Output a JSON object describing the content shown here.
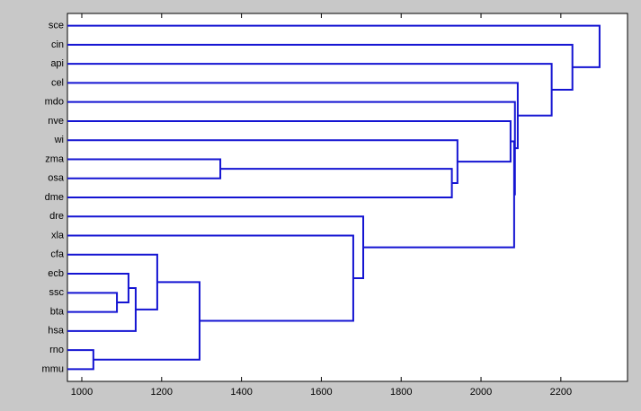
{
  "chart_data": {
    "type": "dendrogram",
    "orientation": "right",
    "color": "#1414d2",
    "leaves": [
      "sce",
      "cin",
      "api",
      "cel",
      "mdo",
      "nve",
      "wi",
      "zma",
      "osa",
      "dme",
      "dre",
      "xla",
      "cfa",
      "ecb",
      "ssc",
      "bta",
      "hsa",
      "rno",
      "mmu"
    ],
    "links": [
      {
        "left": 17,
        "right": 18,
        "height": 1029
      },
      {
        "left": 14,
        "right": 15,
        "height": 1088
      },
      {
        "left": 13,
        "right": 20,
        "height": 1117
      },
      {
        "left": 21,
        "right": 16,
        "height": 1135
      },
      {
        "left": 12,
        "right": 22,
        "height": 1189
      },
      {
        "left": 23,
        "right": 19,
        "height": 1295
      },
      {
        "left": 7,
        "right": 8,
        "height": 1347
      },
      {
        "left": 11,
        "right": 24,
        "height": 1680
      },
      {
        "left": 10,
        "right": 26,
        "height": 1705
      },
      {
        "left": 25,
        "right": 9,
        "height": 1927
      },
      {
        "left": 6,
        "right": 28,
        "height": 1941
      },
      {
        "left": 5,
        "right": 29,
        "height": 2074
      },
      {
        "left": 30,
        "right": 27,
        "height": 2083
      },
      {
        "left": 4,
        "right": 31,
        "height": 2085
      },
      {
        "left": 3,
        "right": 32,
        "height": 2092
      },
      {
        "left": 2,
        "right": 33,
        "height": 2177
      },
      {
        "left": 1,
        "right": 34,
        "height": 2229
      },
      {
        "left": 0,
        "right": 35,
        "height": 2297
      }
    ],
    "xlim": [
      964,
      2367
    ],
    "xticks": [
      1000,
      1200,
      1400,
      1600,
      1800,
      2000,
      2200
    ]
  }
}
